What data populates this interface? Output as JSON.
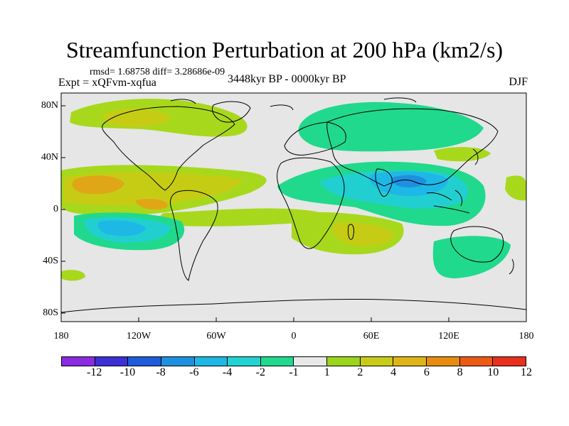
{
  "title": "Streamfunction Perturbation at 200 hPa (km2/s)",
  "stats": "rmsd= 1.68758 diff= 3.28686e-09",
  "experiment": "Expt = xQFvm-xqfua",
  "period": "3448kyr BP - 0000kyr BP",
  "season": "DJF",
  "lat_labels": [
    "80N",
    "40N",
    "0",
    "40S",
    "80S"
  ],
  "lon_labels": [
    "180",
    "120W",
    "60W",
    "0",
    "60E",
    "120E",
    "180"
  ],
  "colorbar": {
    "colors": [
      "#8a2be2",
      "#3b2fd6",
      "#1f5cdb",
      "#1e90e0",
      "#1eb8e6",
      "#22d3d3",
      "#20d98c",
      "#e8e8e8",
      "#9ad61c",
      "#c8cc18",
      "#e0b416",
      "#e88c10",
      "#ec5a14",
      "#e8301c"
    ],
    "labels": [
      "-12",
      "-10",
      "-8",
      "-6",
      "-4",
      "-2",
      "-1",
      "1",
      "2",
      "4",
      "6",
      "8",
      "10",
      "12"
    ]
  }
}
